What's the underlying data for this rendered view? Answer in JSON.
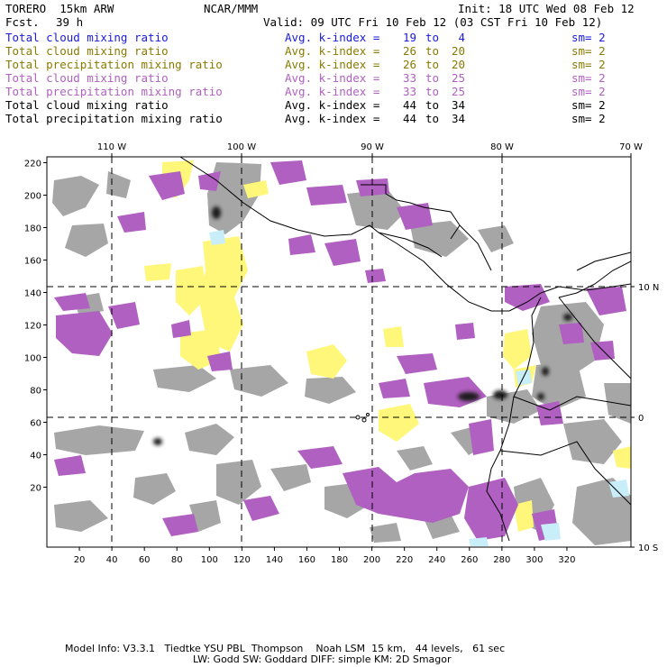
{
  "header": {
    "model": "TORERO  15km ARW",
    "institution": "NCAR/MMM",
    "init": "Init: 18 UTC Wed 08 Feb 12",
    "fcst_label": "Fcst.",
    "fcst_value": "39 h",
    "valid": "Valid: 09 UTC Fri 10 Feb 12 (03 CST Fri 10 Feb 12)"
  },
  "legend": [
    {
      "field": "Total cloud mixing ratio",
      "avg": "Avg. k-index =",
      "v1": "19",
      "to": "to",
      "v2": "4",
      "sm": "sm= 2",
      "color": "#1a1adc"
    },
    {
      "field": "Total cloud mixing ratio",
      "avg": "Avg. k-index =",
      "v1": "26",
      "to": "to",
      "v2": "20",
      "sm": "sm= 2",
      "color": "#8a7a00"
    },
    {
      "field": "Total precipitation mixing ratio",
      "avg": "Avg. k-index =",
      "v1": "26",
      "to": "to",
      "v2": "20",
      "sm": "sm= 2",
      "color": "#8a7a00"
    },
    {
      "field": "Total cloud mixing ratio",
      "avg": "Avg. k-index =",
      "v1": "33",
      "to": "to",
      "v2": "25",
      "sm": "sm= 2",
      "color": "#b060c0"
    },
    {
      "field": "Total precipitation mixing ratio",
      "avg": "Avg. k-index =",
      "v1": "33",
      "to": "to",
      "v2": "25",
      "sm": "sm= 2",
      "color": "#b060c0"
    },
    {
      "field": "Total cloud mixing ratio",
      "avg": "Avg. k-index =",
      "v1": "44",
      "to": "to",
      "v2": "34",
      "sm": "sm= 2",
      "color": "#000000"
    },
    {
      "field": "Total precipitation mixing ratio",
      "avg": "Avg. k-index =",
      "v1": "44",
      "to": "to",
      "v2": "34",
      "sm": "sm= 2",
      "color": "#000000"
    }
  ],
  "map": {
    "lon_labels": [
      "110 W",
      "100 W",
      "90 W",
      "80 W",
      "70 W"
    ],
    "lat_labels": [
      "10 N",
      "0",
      "10 S"
    ],
    "y_ticks": [
      "220",
      "200",
      "180",
      "160",
      "140",
      "120",
      "100",
      "80",
      "60",
      "40",
      "20"
    ],
    "x_ticks": [
      "20",
      "40",
      "60",
      "80",
      "100",
      "120",
      "140",
      "160",
      "180",
      "200",
      "220",
      "240",
      "260",
      "280",
      "300",
      "320"
    ],
    "colors": {
      "yellow": "#fff77a",
      "purple": "#b060c0",
      "gray": "#a6a6a6",
      "dark": "#1c1c1c",
      "lightblue": "#c8eefa"
    }
  },
  "footer": {
    "line1": "Model Info: V3.3.1   Tiedtke YSU PBL  Thompson    Noah LSM  15 km,   44 levels,   61 sec",
    "line2": "LW: Godd SW: Goddard DIFF: simple KM: 2D Smagor"
  }
}
